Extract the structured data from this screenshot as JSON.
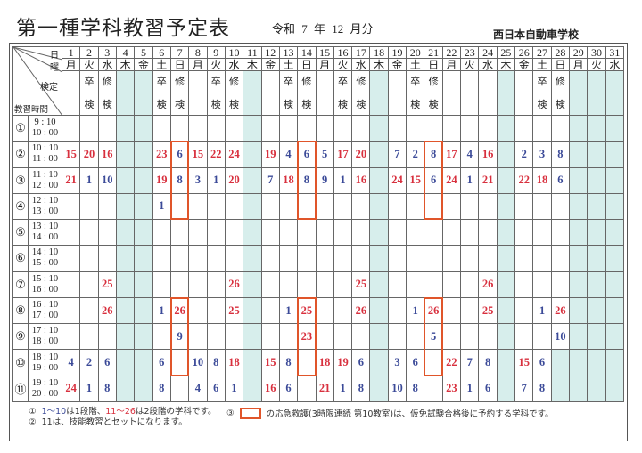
{
  "header": {
    "title": "第一種学科教習予定表",
    "period": "令和 7 年 12 月分",
    "school": "西日本自動車学校"
  },
  "corner": {
    "day": "日",
    "weekday": "曜",
    "kentei": "検定",
    "time": "教習時間"
  },
  "colors": {
    "stage1": "#3b4a98",
    "stage2": "#d8303e",
    "emergency_box": "#e0552a",
    "closed": "#d7eeec"
  },
  "days": [
    {
      "d": "1",
      "w": "月"
    },
    {
      "d": "2",
      "w": "火",
      "k": [
        "卒",
        "検"
      ]
    },
    {
      "d": "3",
      "w": "水",
      "k": [
        "修",
        "検"
      ]
    },
    {
      "d": "4",
      "w": "木",
      "closed": true
    },
    {
      "d": "5",
      "w": "金",
      "closed": true
    },
    {
      "d": "6",
      "w": "土",
      "k": [
        "卒",
        "検"
      ]
    },
    {
      "d": "7",
      "w": "日",
      "k": [
        "修",
        "検"
      ]
    },
    {
      "d": "8",
      "w": "月"
    },
    {
      "d": "9",
      "w": "火",
      "k": [
        "卒",
        "検"
      ]
    },
    {
      "d": "10",
      "w": "水",
      "k": [
        "修",
        "検"
      ]
    },
    {
      "d": "11",
      "w": "木",
      "closed": true
    },
    {
      "d": "12",
      "w": "金"
    },
    {
      "d": "13",
      "w": "土",
      "k": [
        "卒",
        "検"
      ]
    },
    {
      "d": "14",
      "w": "日",
      "k": [
        "修",
        "検"
      ]
    },
    {
      "d": "15",
      "w": "月"
    },
    {
      "d": "16",
      "w": "火",
      "k": [
        "卒",
        "検"
      ]
    },
    {
      "d": "17",
      "w": "水",
      "k": [
        "修",
        "検"
      ]
    },
    {
      "d": "18",
      "w": "木",
      "closed": true
    },
    {
      "d": "19",
      "w": "金"
    },
    {
      "d": "20",
      "w": "土",
      "k": [
        "卒",
        "検"
      ]
    },
    {
      "d": "21",
      "w": "日",
      "k": [
        "修",
        "検"
      ]
    },
    {
      "d": "22",
      "w": "月"
    },
    {
      "d": "23",
      "w": "火"
    },
    {
      "d": "24",
      "w": "水"
    },
    {
      "d": "25",
      "w": "木",
      "closed": true
    },
    {
      "d": "26",
      "w": "金"
    },
    {
      "d": "27",
      "w": "土",
      "k": [
        "卒",
        "検"
      ]
    },
    {
      "d": "28",
      "w": "日",
      "k": [
        "修",
        "検"
      ],
      "closed_periods": [
        10,
        11
      ]
    },
    {
      "d": "29",
      "w": "月",
      "closed": true
    },
    {
      "d": "30",
      "w": "火",
      "closed": true
    },
    {
      "d": "31",
      "w": "水",
      "closed": true
    }
  ],
  "rows": [
    {
      "no": "①",
      "start": "9 : 10",
      "end": "10 : 00",
      "cells": {}
    },
    {
      "no": "②",
      "start": "10 : 10",
      "end": "11 : 00",
      "cells": {
        "1": 15,
        "2": 20,
        "3": 16,
        "6": 23,
        "7": 6,
        "8": 15,
        "9": 22,
        "10": 24,
        "12": 19,
        "13": 4,
        "14": 6,
        "15": 5,
        "16": 17,
        "17": 20,
        "19": 7,
        "20": 2,
        "21": 8,
        "22": 17,
        "23": 4,
        "24": 16,
        "26": 2,
        "27": 3,
        "28": 8
      }
    },
    {
      "no": "③",
      "start": "11 : 10",
      "end": "12 : 00",
      "cells": {
        "1": 21,
        "2": 1,
        "3": 10,
        "6": 19,
        "7": 8,
        "8": 3,
        "9": 1,
        "10": 20,
        "12": 7,
        "13": 18,
        "14": 8,
        "15": 9,
        "16": 1,
        "17": 16,
        "19": 24,
        "20": 15,
        "21": 6,
        "22": 24,
        "23": 1,
        "24": 21,
        "26": 22,
        "27": 18,
        "28": 6
      }
    },
    {
      "no": "④",
      "start": "12 : 10",
      "end": "13 : 00",
      "cells": {
        "6": 1
      }
    },
    {
      "no": "⑤",
      "start": "13 : 10",
      "end": "14 : 00",
      "cells": {}
    },
    {
      "no": "⑥",
      "start": "14 : 10",
      "end": "15 : 00",
      "cells": {}
    },
    {
      "no": "⑦",
      "start": "15 : 10",
      "end": "16 : 00",
      "cells": {
        "3": 25,
        "10": 26,
        "17": 25,
        "24": 26
      }
    },
    {
      "no": "⑧",
      "start": "16 : 10",
      "end": "17 : 00",
      "cells": {
        "3": 26,
        "6": 1,
        "7": 26,
        "10": 25,
        "13": 1,
        "14": 25,
        "17": 26,
        "20": 1,
        "21": 26,
        "24": 25,
        "27": 1,
        "28": 26
      }
    },
    {
      "no": "⑨",
      "start": "17 : 10",
      "end": "18 : 00",
      "cells": {
        "7": 9,
        "14": 23,
        "21": 5,
        "28": 10
      }
    },
    {
      "no": "⑩",
      "start": "18 : 10",
      "end": "19 : 00",
      "cells": {
        "1": 4,
        "2": 2,
        "3": 6,
        "6": 6,
        "8": 10,
        "9": 8,
        "10": 18,
        "12": 15,
        "13": 8,
        "15": 18,
        "16": 19,
        "17": 6,
        "19": 3,
        "20": 6,
        "22": 22,
        "23": 7,
        "24": 8,
        "26": 15,
        "27": 6
      }
    },
    {
      "no": "⑪",
      "start": "19 : 10",
      "end": "20 : 00",
      "cells": {
        "1": 24,
        "2": 1,
        "3": 8,
        "6": 8,
        "8": 4,
        "9": 6,
        "10": 1,
        "12": 16,
        "13": 6,
        "15": 21,
        "16": 1,
        "17": 8,
        "19": 10,
        "20": 8,
        "22": 23,
        "23": 1,
        "24": 6,
        "26": 7,
        "27": 8
      }
    }
  ],
  "stage2_from": 11,
  "emergency_blocks": [
    {
      "day": 7,
      "periods": [
        2,
        4
      ]
    },
    {
      "day": 7,
      "periods": [
        8,
        10
      ]
    },
    {
      "day": 14,
      "periods": [
        2,
        4
      ]
    },
    {
      "day": 14,
      "periods": [
        8,
        10
      ]
    },
    {
      "day": 21,
      "periods": [
        2,
        4
      ]
    },
    {
      "day": 21,
      "periods": [
        8,
        10
      ]
    }
  ],
  "notes": {
    "n1_mark": "①",
    "n1_a": "1〜10",
    "n1_b": "は1段階、",
    "n1_c": "11〜26",
    "n1_d": "は2段階の学科です。",
    "n2_mark": "②",
    "n2": "11は、技能教習とセットになります。",
    "n3_mark": "③",
    "n3": "の応急救護(3時限連続 第10教室)は、仮免試験合格後に予約する学科です。"
  }
}
